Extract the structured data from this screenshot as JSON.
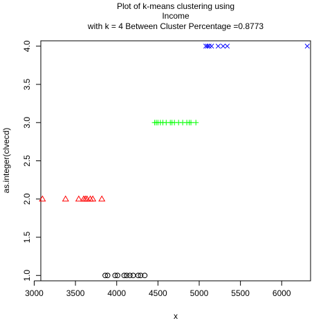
{
  "chart_data": {
    "type": "scatter",
    "title_lines": [
      "Plot of k-means clustering using",
      "Income",
      "with  k = 4 Between Cluster Percentage =0.8773"
    ],
    "xlabel": "x",
    "ylabel": "as.integer(clvecd)",
    "xlim": [
      3080,
      6350
    ],
    "ylim": [
      0.93,
      4.07
    ],
    "xticks": [
      3000,
      3500,
      4000,
      4500,
      5000,
      5500,
      6000
    ],
    "yticks": [
      1.0,
      1.5,
      2.0,
      2.5,
      3.0,
      3.5,
      4.0
    ],
    "xtick_labels": [
      "3000",
      "3500",
      "4000",
      "4500",
      "5000",
      "5500",
      "6000"
    ],
    "ytick_labels": [
      "1.0",
      "1.5",
      "2.0",
      "2.5",
      "3.0",
      "3.5",
      "4.0"
    ],
    "series": [
      {
        "marker": "circle",
        "color": "#000000",
        "y": 1,
        "x": [
          3860,
          3890,
          3980,
          4010,
          4090,
          4120,
          4160,
          4200,
          4260,
          4290,
          4340
        ]
      },
      {
        "marker": "triangle",
        "color": "#ff0000",
        "y": 2,
        "x": [
          3100,
          3380,
          3540,
          3600,
          3620,
          3640,
          3680,
          3710,
          3820
        ]
      },
      {
        "marker": "plus",
        "color": "#00ff00",
        "y": 3,
        "x": [
          4460,
          4480,
          4500,
          4530,
          4560,
          4600,
          4650,
          4670,
          4700,
          4750,
          4800,
          4850,
          4880,
          4900,
          4960
        ]
      },
      {
        "marker": "x",
        "color": "#0000ff",
        "y": 4,
        "x": [
          5080,
          5100,
          5120,
          5150,
          5230,
          5290,
          5340,
          6310
        ]
      }
    ]
  }
}
